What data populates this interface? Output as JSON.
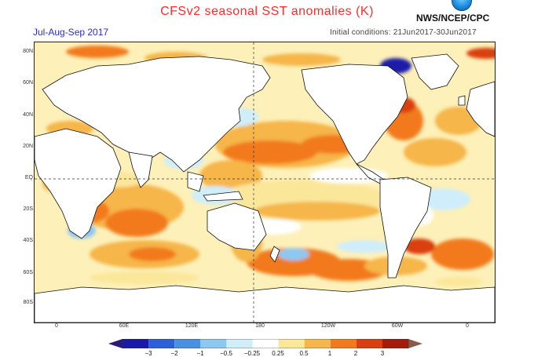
{
  "header": {
    "title": "CFSv2 seasonal SST anomalies (K)",
    "season": "Jul-Aug-Sep 2017",
    "initial_conditions": "Initial conditions: 21Jun2017-30Jun2017",
    "agency": "NWS/NCEP/CPC"
  },
  "map": {
    "lat_labels": [
      "80N",
      "60N",
      "40N",
      "20N",
      "EQ",
      "20S",
      "40S",
      "60S",
      "80S"
    ],
    "lon_labels": [
      "0",
      "60E",
      "120E",
      "180",
      "120W",
      "60W",
      "0"
    ]
  },
  "colorbar": {
    "labels": [
      "−3",
      "−2",
      "−1",
      "−0.5",
      "−0.25",
      "0.25",
      "0.5",
      "1",
      "2",
      "3"
    ],
    "colors": [
      "#1a1aa8",
      "#2c60d8",
      "#4a90e2",
      "#8ec8f0",
      "#cfeefa",
      "#ffffff",
      "#fbe79a",
      "#f6b64a",
      "#f27a1c",
      "#d93f10",
      "#a41b0c"
    ],
    "arrow_low": "#2a1a7a",
    "arrow_high": "#8a5a4a"
  },
  "legend_palette": {
    "land": "#ffffff",
    "coast": "#111111",
    "gridline": "#333333"
  }
}
